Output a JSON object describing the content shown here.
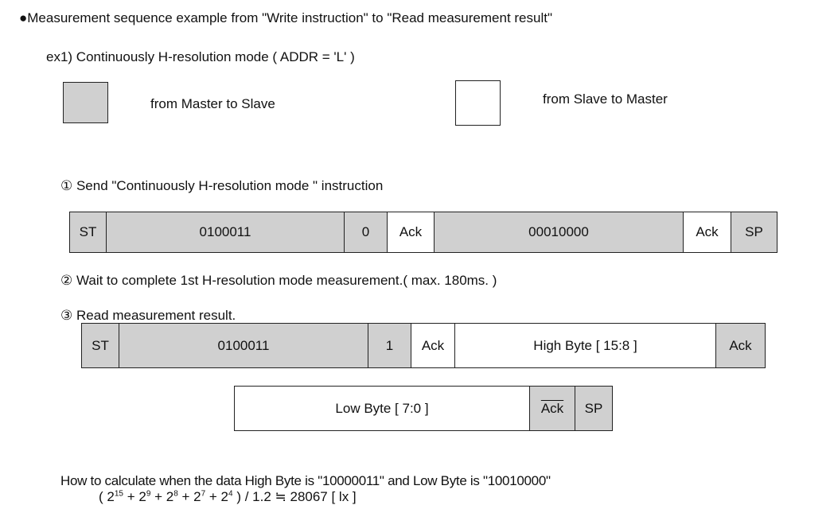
{
  "heading": "●Measurement sequence example from \"Write instruction\" to \"Read measurement result\"",
  "example": "ex1)   Continuously H-resolution mode ( ADDR = 'L' )",
  "legend": {
    "master_to_slave": "from Master to Slave",
    "slave_to_master": "from Slave to Master",
    "colors": {
      "master": "#d0d0d0",
      "slave": "#ffffff"
    }
  },
  "steps": [
    {
      "label": "① Send \"Continuously H-resolution mode \" instruction",
      "cells": [
        {
          "text": "ST",
          "by": "master"
        },
        {
          "text": "0100011",
          "by": "master"
        },
        {
          "text": "0",
          "by": "master"
        },
        {
          "text": "Ack",
          "by": "slave"
        },
        {
          "text": "00010000",
          "by": "master"
        },
        {
          "text": "Ack",
          "by": "slave"
        },
        {
          "text": "SP",
          "by": "master"
        }
      ]
    },
    {
      "label": "② Wait to complete 1st   H-resolution mode measurement.( max. 180ms. )"
    },
    {
      "label": "③ Read measurement result.",
      "cells": [
        {
          "text": "ST",
          "by": "master"
        },
        {
          "text": "0100011",
          "by": "master"
        },
        {
          "text": "1",
          "by": "master"
        },
        {
          "text": "Ack",
          "by": "slave"
        },
        {
          "text": "High Byte [ 15:8 ]",
          "by": "slave"
        },
        {
          "text": "Ack",
          "by": "master"
        }
      ],
      "cells2": [
        {
          "text": "Low Byte [ 7:0 ]",
          "by": "slave"
        },
        {
          "text": "Ack",
          "by": "master",
          "overline": true
        },
        {
          "text": "SP",
          "by": "master"
        }
      ]
    }
  ],
  "calc": {
    "text": "How to calculate when the data High Byte is \"10000011\" and Low Byte is \"10010000\"",
    "formula_open": "( 2",
    "e1": "15",
    "p2": " + 2",
    "e2": "9",
    "p3": " + 2",
    "e3": "8",
    "p4": " + 2",
    "e4": "7",
    "p5": " + 2",
    "e5": "4",
    "formula_close": " ) / 1.2  ≒  28067 [ lx ]"
  }
}
